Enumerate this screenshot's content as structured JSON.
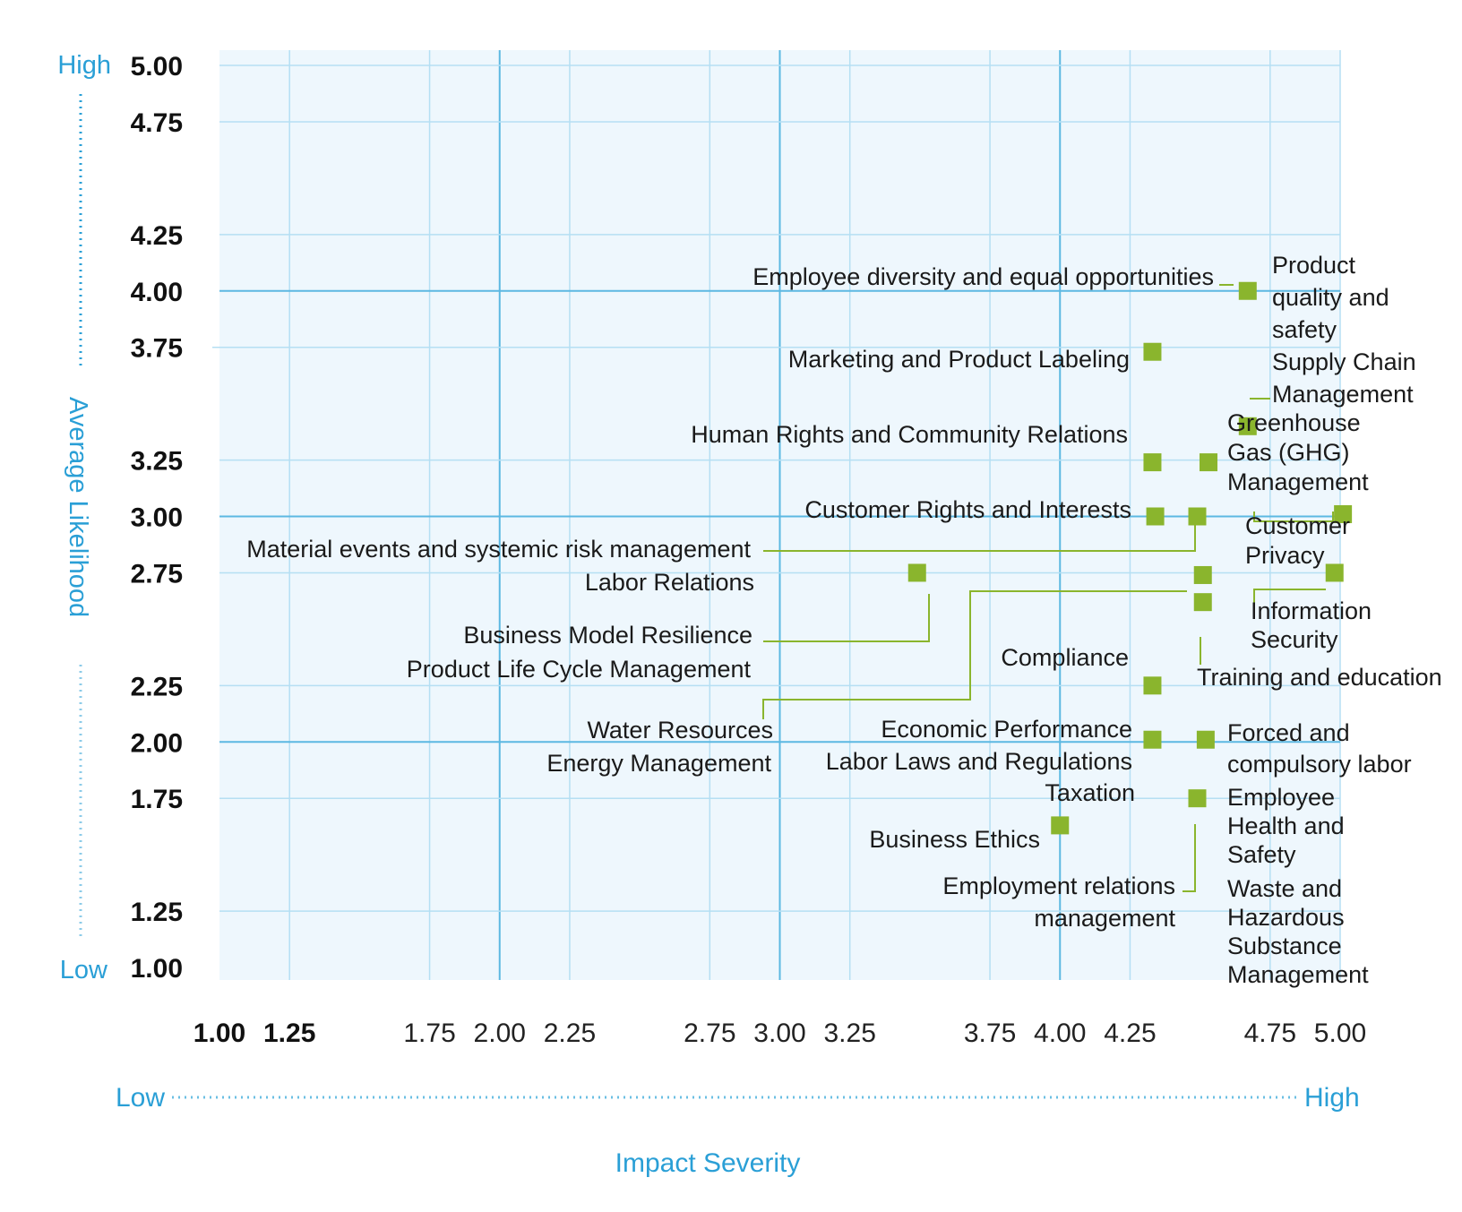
{
  "chart_data": {
    "type": "scatter",
    "xlabel": "Impact Severity",
    "ylabel": "Average Likelihood",
    "xlim": [
      1.0,
      5.0
    ],
    "ylim": [
      1.0,
      5.0
    ],
    "x_ticks": [
      "1.00",
      "1.25",
      "1.75",
      "2.00",
      "2.25",
      "2.75",
      "3.00",
      "3.25",
      "3.75",
      "4.00",
      "4.25",
      "4.75",
      "5.00"
    ],
    "y_ticks": [
      "1.00",
      "1.25",
      "1.75",
      "2.00",
      "2.25",
      "2.75",
      "3.00",
      "3.25",
      "3.75",
      "4.00",
      "4.25",
      "4.75",
      "5.00"
    ],
    "x_low_label": "Low",
    "x_high_label": "High",
    "y_low_label": "Low",
    "y_high_label": "High",
    "grid": true,
    "points": [
      {
        "name": "Employee diversity and equal opportunities",
        "x": 4.67,
        "y": 4.0
      },
      {
        "name": "Product quality and safety",
        "x": 4.67,
        "y": 4.0
      },
      {
        "name": "Marketing and Product Labeling",
        "x": 4.33,
        "y": 3.73
      },
      {
        "name": "Supply Chain Management",
        "x": 4.67,
        "y": 3.4
      },
      {
        "name": "Human Rights and Community Relations",
        "x": 4.33,
        "y": 3.24
      },
      {
        "name": "Greenhouse Gas (GHG) Management",
        "x": 4.53,
        "y": 3.24
      },
      {
        "name": "Customer Rights and Interests",
        "x": 4.34,
        "y": 3.0
      },
      {
        "name": "Material events and systemic risk management",
        "x": 4.49,
        "y": 3.0
      },
      {
        "name": "Customer Privacy",
        "x": 5.01,
        "y": 3.01
      },
      {
        "name": "Labor Relations",
        "x": 3.49,
        "y": 2.75
      },
      {
        "name": "Business Model Resilience",
        "x": 3.49,
        "y": 2.75
      },
      {
        "name": "Water Resources",
        "x": 4.51,
        "y": 2.74
      },
      {
        "name": "Energy Management",
        "x": 4.51,
        "y": 2.74
      },
      {
        "name": "Information Security",
        "x": 4.98,
        "y": 2.75
      },
      {
        "name": "Product Life Cycle Management",
        "x": 4.51,
        "y": 2.62
      },
      {
        "name": "Training and education",
        "x": 4.51,
        "y": 2.62
      },
      {
        "name": "Compliance",
        "x": 4.33,
        "y": 2.25
      },
      {
        "name": "Economic Performance",
        "x": 4.33,
        "y": 2.01
      },
      {
        "name": "Labor Laws and Regulations",
        "x": 4.33,
        "y": 2.01
      },
      {
        "name": "Taxation",
        "x": 4.33,
        "y": 2.01
      },
      {
        "name": "Forced and compulsory labor",
        "x": 4.52,
        "y": 2.01
      },
      {
        "name": "Employee Health and Safety",
        "x": 4.49,
        "y": 1.75
      },
      {
        "name": "Employment relations management",
        "x": 4.49,
        "y": 1.75
      },
      {
        "name": "Waste and Hazardous Substance Management",
        "x": 4.49,
        "y": 1.75
      },
      {
        "name": "Business Ethics",
        "x": 4.0,
        "y": 1.63
      }
    ],
    "marker_color": "#8ab52d",
    "grid_color": "#b5dff3",
    "plot_background": "#eef7fd",
    "accent_color": "#2a9fd6"
  }
}
